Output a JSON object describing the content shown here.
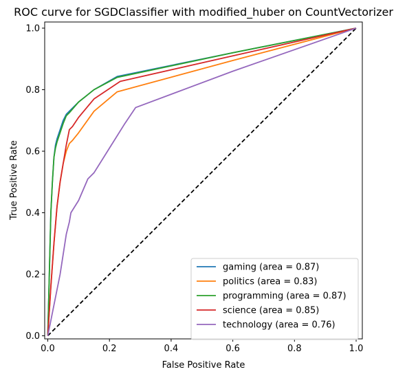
{
  "chart_data": {
    "type": "line",
    "title": "ROC curve for SGDClassifier with modified_huber on CountVectorizer",
    "xlabel": "False Positive Rate",
    "ylabel": "True Positive Rate",
    "xlim": [
      -0.01,
      1.02
    ],
    "ylim": [
      -0.01,
      1.02
    ],
    "xticks": [
      0.0,
      0.2,
      0.4,
      0.6,
      0.8,
      1.0
    ],
    "yticks": [
      0.0,
      0.2,
      0.4,
      0.6,
      0.8,
      1.0
    ],
    "xtick_labels": [
      "0.0",
      "0.2",
      "0.4",
      "0.6",
      "0.8",
      "1.0"
    ],
    "ytick_labels": [
      "0.0",
      "0.2",
      "0.4",
      "0.6",
      "0.8",
      "1.0"
    ],
    "grid": false,
    "legend_position": "lower-right",
    "diagonal_reference": true,
    "series": [
      {
        "name": "gaming (area = 0.87)",
        "color": "#1f77b4",
        "x": [
          0.0,
          0.005,
          0.01,
          0.015,
          0.02,
          0.025,
          0.03,
          0.04,
          0.05,
          0.06,
          0.07,
          0.1,
          0.15,
          0.225,
          0.6,
          1.0
        ],
        "y": [
          0.0,
          0.2,
          0.4,
          0.5,
          0.58,
          0.62,
          0.64,
          0.67,
          0.7,
          0.72,
          0.73,
          0.76,
          0.8,
          0.843,
          0.92,
          1.0
        ]
      },
      {
        "name": "politics (area = 0.83)",
        "color": "#ff7f0e",
        "x": [
          0.0,
          0.01,
          0.02,
          0.03,
          0.04,
          0.05,
          0.06,
          0.07,
          0.08,
          0.1,
          0.15,
          0.225,
          0.6,
          1.0
        ],
        "y": [
          0.0,
          0.16,
          0.3,
          0.42,
          0.5,
          0.56,
          0.6,
          0.625,
          0.635,
          0.66,
          0.73,
          0.793,
          0.895,
          1.0
        ]
      },
      {
        "name": "programming (area = 0.87)",
        "color": "#2ca02c",
        "x": [
          0.0,
          0.005,
          0.01,
          0.015,
          0.02,
          0.025,
          0.03,
          0.04,
          0.05,
          0.06,
          0.07,
          0.1,
          0.15,
          0.225,
          0.6,
          1.0
        ],
        "y": [
          0.0,
          0.2,
          0.4,
          0.5,
          0.58,
          0.61,
          0.63,
          0.66,
          0.69,
          0.715,
          0.725,
          0.76,
          0.8,
          0.84,
          0.92,
          1.0
        ]
      },
      {
        "name": "science (area = 0.85)",
        "color": "#d62728",
        "x": [
          0.0,
          0.01,
          0.02,
          0.03,
          0.04,
          0.05,
          0.06,
          0.07,
          0.08,
          0.1,
          0.15,
          0.235,
          0.6,
          1.0
        ],
        "y": [
          0.0,
          0.16,
          0.3,
          0.42,
          0.5,
          0.56,
          0.62,
          0.67,
          0.68,
          0.71,
          0.77,
          0.827,
          0.91,
          1.0
        ]
      },
      {
        "name": "technology (area = 0.76)",
        "color": "#9467bd",
        "x": [
          0.0,
          0.02,
          0.04,
          0.06,
          0.07,
          0.075,
          0.1,
          0.13,
          0.15,
          0.2,
          0.25,
          0.285,
          0.6,
          1.0
        ],
        "y": [
          0.0,
          0.1,
          0.2,
          0.33,
          0.37,
          0.4,
          0.44,
          0.51,
          0.53,
          0.61,
          0.69,
          0.742,
          0.86,
          1.0
        ]
      }
    ]
  }
}
